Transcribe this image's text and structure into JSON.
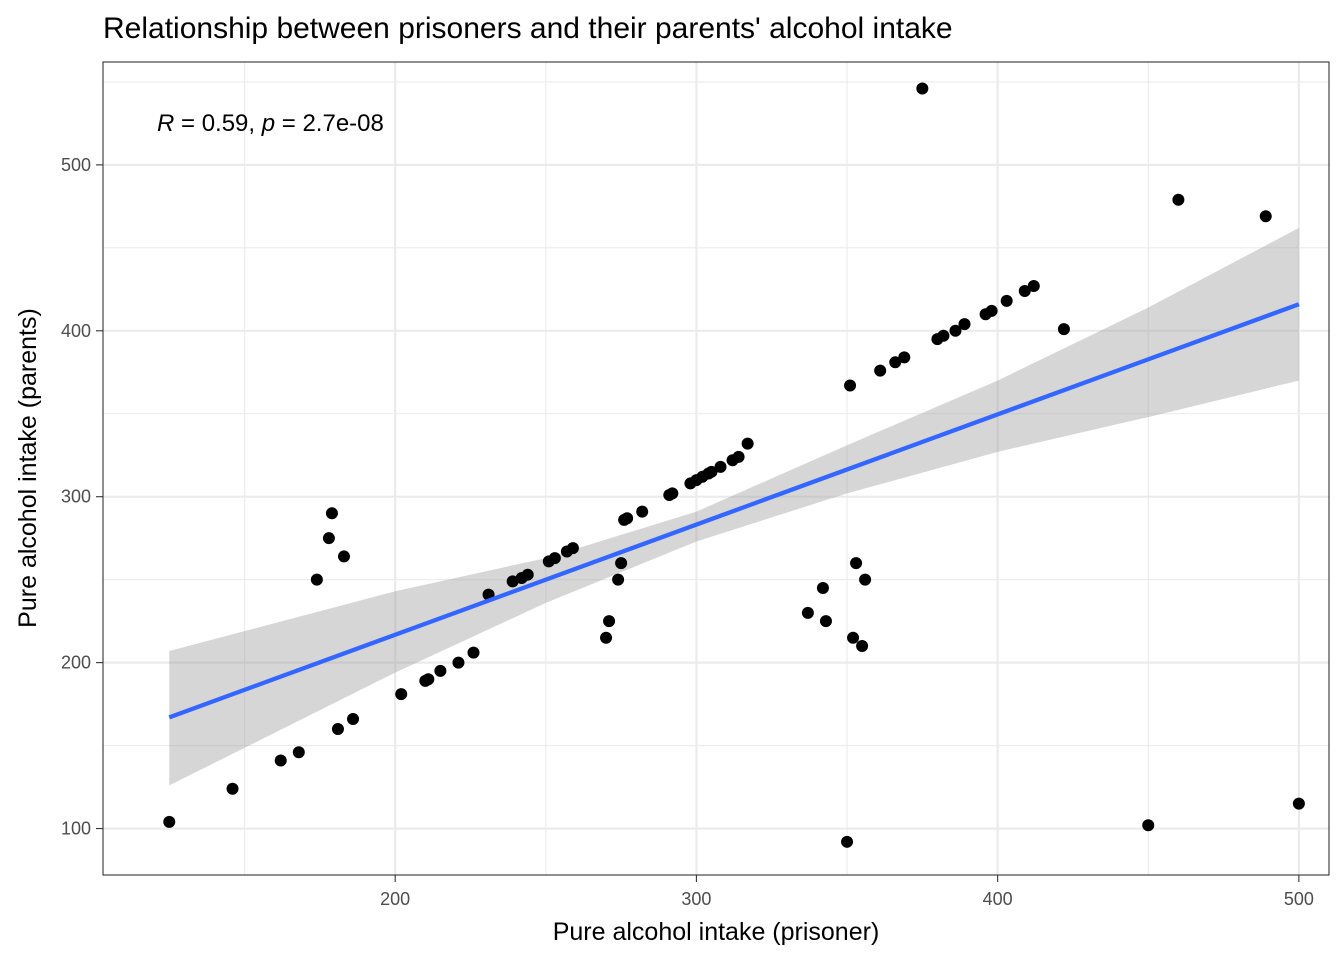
{
  "chart_data": {
    "type": "scatter",
    "title": "Relationship between prisoners and their parents' alcohol intake",
    "xlabel": "Pure alcohol intake (prisoner)",
    "ylabel": "Pure alcohol intake (parents)",
    "annotation": {
      "r_label": "R",
      "r_text": " = 0.59, ",
      "p_label": "p",
      "p_text": " = 2.7e-08"
    },
    "xlim": [
      103,
      510
    ],
    "ylim": [
      72,
      562
    ],
    "xticks": [
      200,
      300,
      400,
      500
    ],
    "yticks": [
      100,
      200,
      300,
      400,
      500
    ],
    "grid": true,
    "point_color": "#000000",
    "line_color": "#3366ff",
    "band_color": "#999999",
    "points": [
      [
        125,
        104
      ],
      [
        146,
        124
      ],
      [
        162,
        141
      ],
      [
        168,
        146
      ],
      [
        174,
        250
      ],
      [
        178,
        275
      ],
      [
        179,
        290
      ],
      [
        183,
        264
      ],
      [
        181,
        160
      ],
      [
        186,
        166
      ],
      [
        202,
        181
      ],
      [
        210,
        189
      ],
      [
        211,
        190
      ],
      [
        215,
        195
      ],
      [
        221,
        200
      ],
      [
        226,
        206
      ],
      [
        231,
        241
      ],
      [
        239,
        249
      ],
      [
        242,
        251
      ],
      [
        244,
        253
      ],
      [
        251,
        261
      ],
      [
        253,
        263
      ],
      [
        257,
        267
      ],
      [
        259,
        269
      ],
      [
        270,
        215
      ],
      [
        271,
        225
      ],
      [
        274,
        250
      ],
      [
        275,
        260
      ],
      [
        276,
        286
      ],
      [
        277,
        287
      ],
      [
        282,
        291
      ],
      [
        291,
        301
      ],
      [
        292,
        302
      ],
      [
        298,
        308
      ],
      [
        300,
        310
      ],
      [
        302,
        312
      ],
      [
        304,
        314
      ],
      [
        305,
        315
      ],
      [
        308,
        318
      ],
      [
        312,
        322
      ],
      [
        314,
        324
      ],
      [
        317,
        332
      ],
      [
        337,
        230
      ],
      [
        342,
        245
      ],
      [
        343,
        225
      ],
      [
        350,
        92
      ],
      [
        351,
        367
      ],
      [
        352,
        215
      ],
      [
        353,
        260
      ],
      [
        355,
        210
      ],
      [
        356,
        250
      ],
      [
        361,
        376
      ],
      [
        366,
        381
      ],
      [
        369,
        384
      ],
      [
        375,
        546
      ],
      [
        380,
        395
      ],
      [
        382,
        397
      ],
      [
        386,
        400
      ],
      [
        389,
        404
      ],
      [
        396,
        410
      ],
      [
        398,
        412
      ],
      [
        403,
        418
      ],
      [
        409,
        424
      ],
      [
        412,
        427
      ],
      [
        422,
        401
      ],
      [
        450,
        102
      ],
      [
        460,
        479
      ],
      [
        489,
        469
      ],
      [
        500,
        115
      ]
    ],
    "regression": {
      "x": [
        125,
        500
      ],
      "y": [
        167,
        416
      ]
    },
    "confidence_band": {
      "x": [
        125,
        200,
        250,
        300,
        350,
        400,
        450,
        500
      ],
      "lower": [
        126,
        194,
        236,
        273,
        302,
        327,
        348,
        370
      ],
      "upper": [
        207,
        243,
        263,
        291,
        331,
        370,
        414,
        462
      ]
    }
  }
}
